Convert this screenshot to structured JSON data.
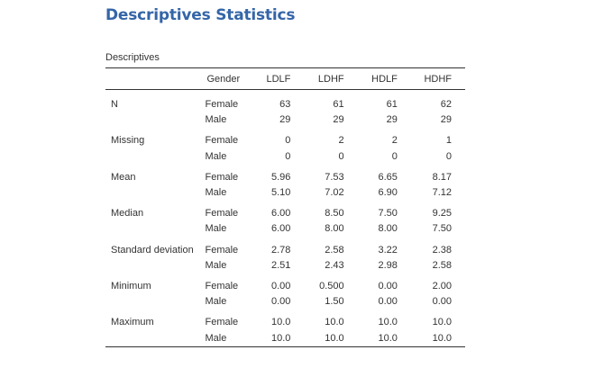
{
  "title": "Descriptives Statistics",
  "table": {
    "caption": "Descriptives",
    "headers": {
      "stat": "",
      "gender": "Gender",
      "cols": [
        "LDLF",
        "LDHF",
        "HDLF",
        "HDHF"
      ]
    },
    "groups": [
      {
        "stat": "N",
        "rows": [
          {
            "gender": "Female",
            "values": [
              "63",
              "61",
              "61",
              "62"
            ]
          },
          {
            "gender": "Male",
            "values": [
              "29",
              "29",
              "29",
              "29"
            ]
          }
        ]
      },
      {
        "stat": "Missing",
        "rows": [
          {
            "gender": "Female",
            "values": [
              "0",
              "2",
              "2",
              "1"
            ]
          },
          {
            "gender": "Male",
            "values": [
              "0",
              "0",
              "0",
              "0"
            ]
          }
        ]
      },
      {
        "stat": "Mean",
        "rows": [
          {
            "gender": "Female",
            "values": [
              "5.96",
              "7.53",
              "6.65",
              "8.17"
            ]
          },
          {
            "gender": "Male",
            "values": [
              "5.10",
              "7.02",
              "6.90",
              "7.12"
            ]
          }
        ]
      },
      {
        "stat": "Median",
        "rows": [
          {
            "gender": "Female",
            "values": [
              "6.00",
              "8.50",
              "7.50",
              "9.25"
            ]
          },
          {
            "gender": "Male",
            "values": [
              "6.00",
              "8.00",
              "8.00",
              "7.50"
            ]
          }
        ]
      },
      {
        "stat": "Standard deviation",
        "rows": [
          {
            "gender": "Female",
            "values": [
              "2.78",
              "2.58",
              "3.22",
              "2.38"
            ]
          },
          {
            "gender": "Male",
            "values": [
              "2.51",
              "2.43",
              "2.98",
              "2.58"
            ]
          }
        ]
      },
      {
        "stat": "Minimum",
        "rows": [
          {
            "gender": "Female",
            "values": [
              "0.00",
              "0.500",
              "0.00",
              "2.00"
            ]
          },
          {
            "gender": "Male",
            "values": [
              "0.00",
              "1.50",
              "0.00",
              "0.00"
            ]
          }
        ]
      },
      {
        "stat": "Maximum",
        "rows": [
          {
            "gender": "Female",
            "values": [
              "10.0",
              "10.0",
              "10.0",
              "10.0"
            ]
          },
          {
            "gender": "Male",
            "values": [
              "10.0",
              "10.0",
              "10.0",
              "10.0"
            ]
          }
        ]
      }
    ]
  }
}
